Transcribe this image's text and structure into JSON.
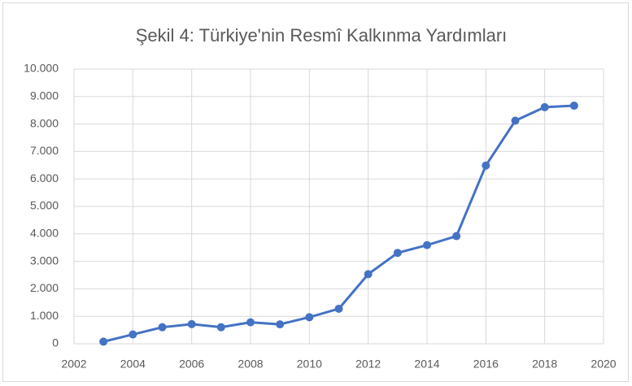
{
  "chart_data": {
    "type": "line",
    "title": "Şekil 4: Türkiye'nin Resmî Kalkınma Yardımları",
    "x": [
      2003,
      2004,
      2005,
      2006,
      2007,
      2008,
      2009,
      2010,
      2011,
      2012,
      2013,
      2014,
      2015,
      2016,
      2017,
      2018,
      2019
    ],
    "series": [
      {
        "name": null,
        "color": "#4472c4",
        "values": [
          76,
          339,
          601,
          714,
          602,
          780,
          707,
          967,
          1273,
          2533,
          3308,
          3591,
          3919,
          6488,
          8121,
          8612,
          8667
        ]
      }
    ],
    "xlim": [
      2002,
      2020
    ],
    "xticks": [
      2002,
      2004,
      2006,
      2008,
      2010,
      2012,
      2014,
      2016,
      2018,
      2020
    ],
    "ylim": [
      0,
      10000
    ],
    "yticks": [
      0,
      {
        "value": 1000,
        "label": "1.000"
      },
      {
        "value": 2000,
        "label": "2.000"
      },
      {
        "value": 3000,
        "label": "3.000"
      },
      {
        "value": 4000,
        "label": "4.000"
      },
      {
        "value": 5000,
        "label": "5.000"
      },
      {
        "value": 6000,
        "label": "6.000"
      },
      {
        "value": 7000,
        "label": "7.000"
      },
      {
        "value": 8000,
        "label": "8.000"
      },
      {
        "value": 9000,
        "label": "9.000"
      },
      {
        "value": 10000,
        "label": "10.000"
      }
    ],
    "grid": true
  }
}
